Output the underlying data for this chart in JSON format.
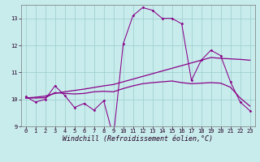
{
  "xlabel": "Windchill (Refroidissement éolien,°C)",
  "background_color": "#c8ecec",
  "line_color": "#880088",
  "hours": [
    0,
    1,
    2,
    3,
    4,
    5,
    6,
    7,
    8,
    9,
    10,
    11,
    12,
    13,
    14,
    15,
    16,
    17,
    18,
    19,
    20,
    21,
    22,
    23
  ],
  "line_zigzag": [
    10.1,
    9.9,
    10.0,
    10.5,
    10.15,
    9.7,
    9.85,
    9.6,
    9.95,
    8.6,
    12.05,
    13.1,
    13.4,
    13.3,
    13.0,
    13.0,
    12.8,
    10.7,
    11.45,
    11.82,
    11.62,
    10.65,
    9.9,
    9.58
  ],
  "line_rising": [
    10.05,
    10.08,
    10.12,
    10.22,
    10.28,
    10.33,
    10.38,
    10.44,
    10.5,
    10.55,
    10.65,
    10.75,
    10.85,
    10.95,
    11.05,
    11.15,
    11.25,
    11.35,
    11.45,
    11.55,
    11.52,
    11.5,
    11.48,
    11.45
  ],
  "line_flat": [
    10.05,
    10.05,
    10.06,
    10.25,
    10.22,
    10.2,
    10.22,
    10.28,
    10.3,
    10.28,
    10.4,
    10.5,
    10.58,
    10.62,
    10.65,
    10.68,
    10.62,
    10.58,
    10.6,
    10.62,
    10.6,
    10.45,
    10.05,
    9.75
  ],
  "ylim": [
    9.0,
    13.5
  ],
  "yticks": [
    9,
    10,
    11,
    12,
    13
  ],
  "xlim": [
    -0.5,
    23.5
  ],
  "xticks": [
    0,
    1,
    2,
    3,
    4,
    5,
    6,
    7,
    8,
    9,
    10,
    11,
    12,
    13,
    14,
    15,
    16,
    17,
    18,
    19,
    20,
    21,
    22,
    23
  ],
  "grid_color": "#99cccc",
  "tick_fontsize": 5.0,
  "label_fontsize": 6.0
}
